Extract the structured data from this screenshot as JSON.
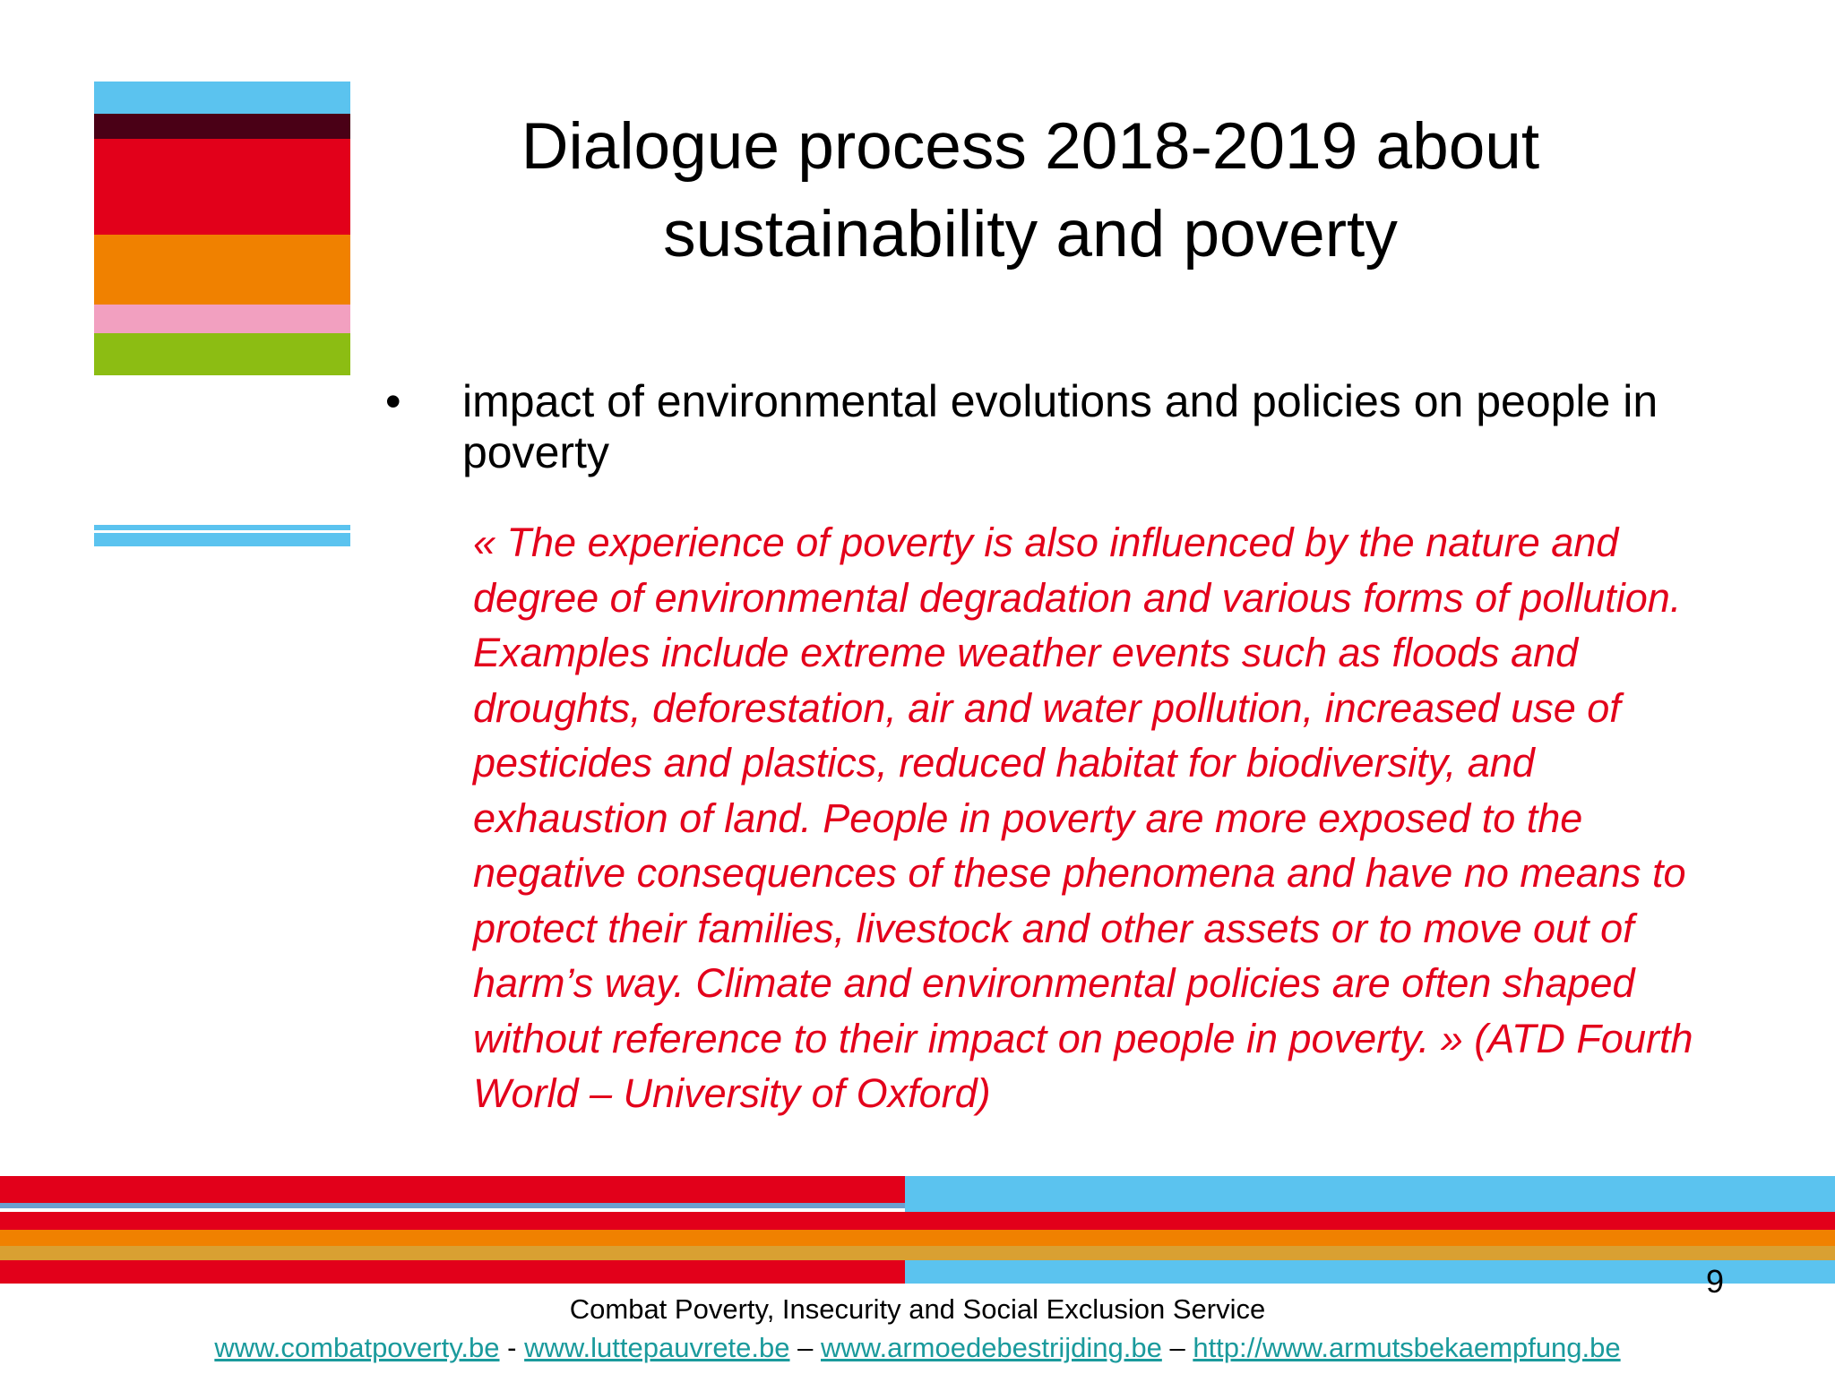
{
  "slide": {
    "title_line1": "Dialogue process 2018-2019 about",
    "title_line2": "sustainability and poverty",
    "bullet_marker": "•",
    "bullet_text": "impact of environmental evolutions and policies on people in poverty",
    "quote": "«  The experience of poverty is also influenced by the nature and degree of environmental degradation and various forms of pollution. Examples include extreme weather events such as floods and droughts, deforestation, air and water pollution, increased use of pesticides and plastics, reduced habitat for biodiversity, and exhaustion of land. People in poverty are more exposed to the negative consequences of these phenomena and have no means to protect their families, livestock and other assets or to move out of harm’s way. Climate and environmental policies are often shaped without reference to their impact on people in poverty. » (ATD Fourth World – University of Oxford)",
    "page_number": "9"
  },
  "footer": {
    "organization": "Combat Poverty, Insecurity and Social Exclusion Service",
    "links": [
      {
        "text": "www.combatpoverty.be"
      },
      {
        "text": "www.luttepauvrete.be"
      },
      {
        "text": "www.armoedebestrijding.be"
      },
      {
        "text": "http://www.armutsbekaempfung.be"
      }
    ],
    "separators": [
      "-",
      "–",
      "–"
    ]
  },
  "colors": {
    "quote": "#e3001b",
    "link": "#1a9a9c",
    "stripe_blue": "#5bc3ef",
    "stripe_maroon": "#4a0016",
    "stripe_red": "#e2001a",
    "stripe_orange": "#f08100",
    "stripe_pink": "#f2a0c0",
    "stripe_green": "#8cbd13"
  }
}
